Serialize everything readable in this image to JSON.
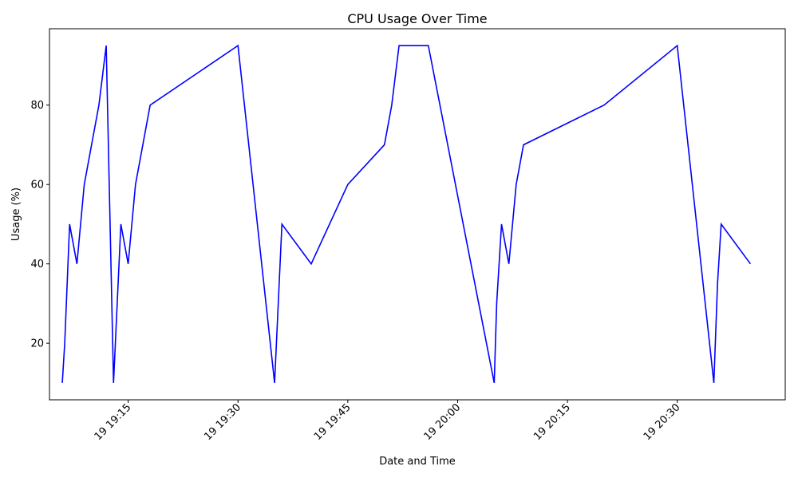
{
  "chart_data": {
    "type": "line",
    "title": "CPU Usage Over Time",
    "xlabel": "Date and Time",
    "ylabel": "Usage (%)",
    "grid": false,
    "line_color": "#0000ff",
    "x_ticks": [
      "19 19:15",
      "19 19:30",
      "19 19:45",
      "19 20:00",
      "19 20:15",
      "19 20:30"
    ],
    "y_ticks": [
      20,
      40,
      60,
      80
    ],
    "xlim": [
      "19:04:15",
      "20:44:45"
    ],
    "ylim": [
      5.75,
      99.25
    ],
    "series": [
      {
        "x": [
          "19:06",
          "19:06:20",
          "19:07",
          "19:08",
          "19:09",
          "19:10",
          "19:11",
          "19:12",
          "19:13",
          "19:13:30",
          "19:14",
          "19:15",
          "19:15:30",
          "19:16",
          "19:18",
          "19:30",
          "19:35",
          "19:35:30",
          "19:36",
          "19:40",
          "19:45",
          "19:50",
          "19:51",
          "19:52",
          "19:56",
          "20:05",
          "20:05:20",
          "20:06",
          "20:07",
          "20:08",
          "20:09",
          "20:20",
          "20:30",
          "20:35",
          "20:35:30",
          "20:36",
          "20:40"
        ],
        "y": [
          10,
          20,
          50,
          40,
          60,
          70,
          80,
          95,
          10,
          30,
          50,
          40,
          50,
          60,
          80,
          95,
          10,
          30,
          50,
          40,
          60,
          70,
          80,
          95,
          95,
          10,
          30,
          50,
          40,
          60,
          70,
          80,
          95,
          10,
          35,
          50,
          40
        ]
      }
    ]
  }
}
